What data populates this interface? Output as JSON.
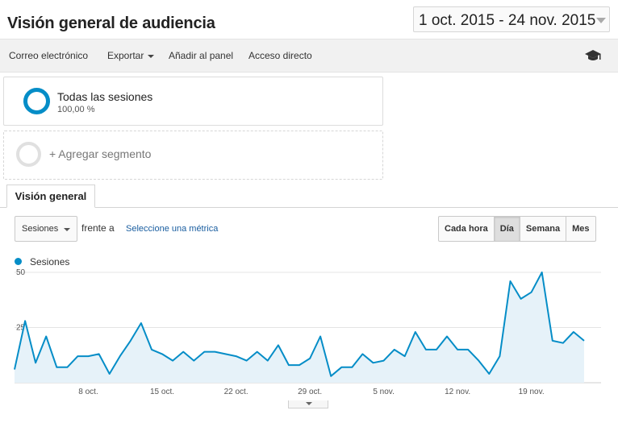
{
  "header": {
    "title": "Visión general de audiencia",
    "date_range": "1 oct. 2015 - 24 nov. 2015"
  },
  "toolbar": {
    "email": "Correo electrónico",
    "export": "Exportar",
    "add_to_dashboard": "Añadir al panel",
    "shortcut": "Acceso directo",
    "cap_icon": "graduation-cap-icon"
  },
  "segments": {
    "active": {
      "name": "Todas las sesiones",
      "percent": "100,00 %"
    },
    "add_label": "+ Agregar segmento"
  },
  "tabs": [
    {
      "label": "Visión general",
      "active": true
    }
  ],
  "controls": {
    "metric": "Sesiones",
    "vs": "frente a",
    "select_metric": "Seleccione una métrica",
    "granularity": [
      {
        "label": "Cada hora",
        "active": false
      },
      {
        "label": "Día",
        "active": true
      },
      {
        "label": "Semana",
        "active": false
      },
      {
        "label": "Mes",
        "active": false
      }
    ]
  },
  "colors": {
    "series": "#058dc7",
    "fill": "#e6f2f9",
    "accent_link": "#1a5ea0"
  },
  "chart_data": {
    "type": "area",
    "series": [
      {
        "name": "Sesiones",
        "values": [
          6,
          28,
          9,
          21,
          7,
          7,
          12,
          12,
          13,
          4,
          12,
          19,
          27,
          15,
          13,
          10,
          14,
          10,
          14,
          14,
          13,
          12,
          10,
          14,
          10,
          17,
          8,
          8,
          11,
          21,
          3,
          7,
          7,
          13,
          9,
          10,
          15,
          12,
          23,
          15,
          15,
          21,
          15,
          15,
          10,
          4,
          12,
          46,
          38,
          41,
          50,
          19,
          18,
          23,
          19
        ]
      }
    ],
    "x_ticks": [
      "8 oct.",
      "15 oct.",
      "22 oct.",
      "29 oct.",
      "5 nov.",
      "12 nov.",
      "19 nov."
    ],
    "x_tick_indices": [
      7,
      14,
      21,
      28,
      35,
      42,
      49
    ],
    "y_ticks": [
      25,
      50
    ],
    "ylim": [
      0,
      50
    ],
    "grid": true,
    "legend": "top-left"
  }
}
